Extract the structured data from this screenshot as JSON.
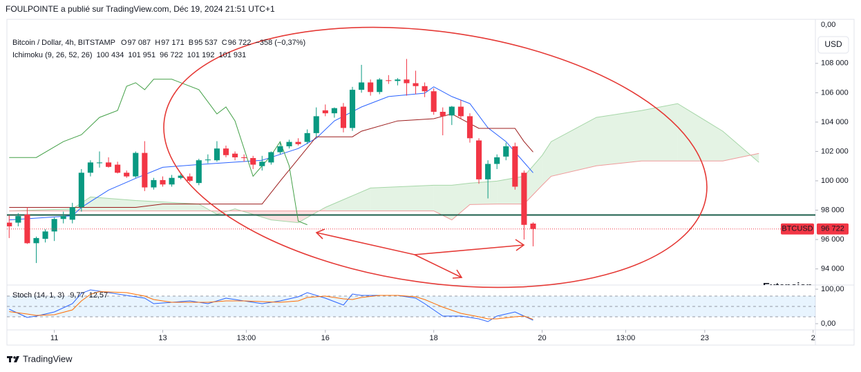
{
  "header": "FOULPOINTE a publié sur TradingView.com, Déc 19, 2024 21:51 UTC+1",
  "footer": "TradingView",
  "chart_data": [
    {
      "type": "candlestick",
      "title": "Bitcoin / Dollar, 4h, BITSTAMP",
      "legend": [
        {
          "key": "O",
          "label": "97 087"
        },
        {
          "key": "H",
          "label": "97 171"
        },
        {
          "key": "B",
          "label": "95 537"
        },
        {
          "key": "C",
          "label": "96 722"
        }
      ],
      "change": "−358 (−0,37%)",
      "up_color": "#089981",
      "down_color": "#f23645",
      "x": [
        -20,
        -16,
        -12,
        -8,
        -4,
        0,
        4,
        8,
        12,
        16,
        20,
        24,
        28,
        32,
        36,
        40,
        44,
        48,
        52,
        56,
        60,
        64,
        68,
        72,
        76,
        80,
        84,
        88,
        92,
        96,
        100,
        104,
        108,
        112,
        116,
        120,
        124,
        128,
        132,
        136,
        140,
        144,
        148,
        152,
        156,
        160,
        164,
        168,
        172,
        176,
        180,
        184,
        188,
        192,
        196,
        200,
        204,
        208,
        212
      ],
      "open": [
        97150,
        97150,
        97700,
        95750,
        96050,
        96550,
        97400,
        97350,
        98200,
        100550,
        101200,
        101250,
        101100,
        100550,
        100300,
        101900,
        99550,
        100050,
        99750,
        100200,
        100300,
        99850,
        101400,
        101400,
        102200,
        101850,
        101600,
        101550,
        101000,
        101250,
        101950,
        102350,
        102650,
        102650,
        103250,
        104800,
        104600,
        105050,
        103600,
        106200,
        106700,
        106050,
        106850,
        106800,
        106900,
        106650,
        106450,
        106100,
        104700,
        104450,
        105050,
        104400,
        102750,
        100100,
        101150,
        101650,
        102350,
        100550,
        97087
      ],
      "high": [
        97650,
        97800,
        98200,
        96200,
        96700,
        97500,
        97900,
        98500,
        100800,
        101400,
        102000,
        101600,
        101300,
        100700,
        102000,
        102700,
        100200,
        100300,
        100400,
        100500,
        100500,
        101500,
        101800,
        102700,
        102400,
        102000,
        101800,
        101700,
        101700,
        102000,
        102600,
        102800,
        102900,
        103500,
        105000,
        105200,
        105000,
        105300,
        106400,
        107900,
        106900,
        107000,
        107200,
        107000,
        108300,
        107500,
        106700,
        106300,
        105000,
        105100,
        105500,
        104600,
        102900,
        101400,
        101800,
        102600,
        102600,
        100700,
        97171
      ],
      "low": [
        96100,
        96900,
        95700,
        94400,
        95800,
        95900,
        97100,
        97100,
        97900,
        100300,
        100900,
        100900,
        100500,
        100200,
        100200,
        99300,
        99400,
        99600,
        99600,
        100100,
        99900,
        99700,
        101200,
        101300,
        101600,
        101400,
        101300,
        100800,
        100700,
        101100,
        101800,
        102200,
        102400,
        102500,
        103000,
        104400,
        104300,
        103300,
        103400,
        106000,
        105800,
        105900,
        106600,
        106500,
        105800,
        105900,
        105700,
        104500,
        103100,
        103800,
        104200,
        102600,
        99800,
        98800,
        100800,
        101400,
        99400,
        96000,
        95537
      ],
      "close": [
        96900,
        97600,
        95750,
        96100,
        96550,
        97400,
        97600,
        98200,
        100550,
        101250,
        101250,
        100950,
        100550,
        100300,
        101900,
        99550,
        100050,
        99750,
        100200,
        100350,
        100000,
        101400,
        101450,
        102200,
        101750,
        101600,
        101550,
        101100,
        101300,
        101950,
        102350,
        102650,
        102500,
        103250,
        104400,
        104600,
        104950,
        103600,
        106200,
        106700,
        106050,
        106900,
        106800,
        106900,
        106650,
        106450,
        106100,
        104700,
        104400,
        105050,
        104400,
        102900,
        100100,
        101150,
        101600,
        102350,
        99600,
        97000,
        96722
      ],
      "indicator": "Ichimoku (9, 26, 52, 26)",
      "lines": [
        {
          "color": "#2962ff",
          "legend_label": "100 434",
          "x": [
            -20,
            8,
            12,
            24,
            36,
            48,
            64,
            92,
            108,
            116,
            124,
            136,
            148,
            164,
            168,
            176,
            184,
            192,
            200,
            204,
            212
          ],
          "values": [
            97340,
            97620,
            98190,
            99370,
            100170,
            100920,
            101110,
            101400,
            102200,
            102900,
            104080,
            105030,
            105740,
            105970,
            106400,
            105740,
            105260,
            103610,
            102670,
            101960,
            100550
          ]
        },
        {
          "color": "#9c1c1c",
          "legend_label": "101 951",
          "x": [
            -20,
            36,
            48,
            92,
            100,
            108,
            116,
            132,
            136,
            152,
            168,
            176,
            188,
            204,
            208,
            212
          ],
          "values": [
            98190,
            98190,
            98420,
            98420,
            99980,
            101490,
            103000,
            103000,
            103380,
            104080,
            104230,
            104560,
            103570,
            103570,
            102670,
            101960
          ]
        },
        {
          "color": "#43a047",
          "legend_label": "96 722",
          "x": [
            -20,
            -8,
            4,
            12,
            20,
            28,
            32,
            36,
            40,
            44,
            52,
            64,
            72,
            76,
            80,
            88,
            96,
            100,
            104,
            108,
            112
          ],
          "values": [
            101590,
            101590,
            102670,
            103140,
            104320,
            104790,
            106440,
            106680,
            106210,
            106920,
            106920,
            106210,
            104560,
            105030,
            104080,
            100310,
            101730,
            102670,
            101020,
            97250,
            97010
          ]
        }
      ],
      "cloud": {
        "x": [
          -20,
          8,
          16,
          36,
          64,
          72,
          80,
          96,
          108,
          120,
          140,
          168,
          176,
          184,
          196,
          208,
          216,
          220,
          240,
          260,
          276,
          296,
          312
        ],
        "span_a": [
          97950,
          98090,
          98900,
          98660,
          98420,
          97720,
          98090,
          97340,
          97150,
          98190,
          99510,
          99700,
          99700,
          99840,
          99980,
          100310,
          101730,
          102670,
          104320,
          104790,
          105260,
          103380,
          101260
        ],
        "span_b": [
          97950,
          97950,
          97950,
          97950,
          97950,
          97950,
          97950,
          97950,
          97950,
          97950,
          97950,
          97950,
          97340,
          98380,
          98420,
          98420,
          99700,
          100310,
          101020,
          101350,
          101350,
          101350,
          101870
        ],
        "span_a_color": "#a5d6a7",
        "span_b_color": "#ef9a9a",
        "span_a_label": "101 192",
        "span_b_label": "101 931"
      },
      "levels": [
        {
          "value": 97670,
          "color": "#1b5e4b"
        }
      ],
      "annotation": "Extension",
      "scale_top_label": "0,00",
      "currency": "USD",
      "symbol": "BTCUSD",
      "price_label": "96 722",
      "xlim": [
        -21,
        337
      ],
      "xticks": [
        {
          "value": 0,
          "label": "11"
        },
        {
          "value": 48,
          "label": "13"
        },
        {
          "value": 85,
          "label": "13:00"
        },
        {
          "value": 120,
          "label": "16"
        },
        {
          "value": 168,
          "label": "18"
        },
        {
          "value": 216,
          "label": "20"
        },
        {
          "value": 253,
          "label": "13:00"
        },
        {
          "value": 288,
          "label": "23"
        },
        {
          "value": 336,
          "label": "2"
        }
      ],
      "ylim": [
        92900,
        111000
      ],
      "yticks": [
        {
          "value": 94000,
          "label": "94 000"
        },
        {
          "value": 96000,
          "label": "96 000"
        },
        {
          "value": 98000,
          "label": "98 000"
        },
        {
          "value": 100000,
          "label": "100 000"
        },
        {
          "value": 102000,
          "label": "102 000"
        },
        {
          "value": 104000,
          "label": "104 000"
        },
        {
          "value": 106000,
          "label": "106 000"
        },
        {
          "value": 108000,
          "label": "108 000"
        }
      ],
      "grid": false
    },
    {
      "type": "line",
      "title": "Stoch (14, 1, 3)",
      "xlim": [
        -21,
        337
      ],
      "ylim": [
        -18,
        110
      ],
      "yticks": [
        {
          "value": 100,
          "label": "100,00"
        },
        {
          "value": 0,
          "label": "0,00"
        }
      ],
      "bands": [
        80,
        50,
        20
      ],
      "series": [
        {
          "color": "#2962ff",
          "legend_label": "9,77",
          "x": [
            -20,
            -12,
            -8,
            0,
            8,
            12,
            16,
            20,
            32,
            40,
            44,
            52,
            60,
            68,
            76,
            84,
            92,
            100,
            108,
            112,
            120,
            128,
            132,
            136,
            144,
            152,
            160,
            164,
            172,
            180,
            188,
            192,
            196,
            204,
            208,
            212
          ],
          "values": [
            42,
            18,
            22,
            34,
            58,
            88,
            98,
            94,
            82,
            74,
            58,
            62,
            66,
            58,
            74,
            66,
            58,
            66,
            78,
            90,
            74,
            54,
            86,
            82,
            82,
            82,
            74,
            58,
            22,
            22,
            14,
            6,
            22,
            34,
            22,
            9.77
          ]
        },
        {
          "color": "#ff6d00",
          "legend_label": "12,57",
          "x": [
            -20,
            -12,
            -8,
            0,
            8,
            12,
            16,
            20,
            32,
            40,
            44,
            52,
            60,
            68,
            76,
            84,
            92,
            100,
            108,
            112,
            120,
            128,
            132,
            136,
            144,
            152,
            160,
            164,
            172,
            180,
            188,
            192,
            196,
            204,
            208,
            212
          ],
          "values": [
            35,
            28,
            24,
            26,
            40,
            66,
            85,
            93,
            90,
            80,
            70,
            62,
            62,
            62,
            66,
            66,
            64,
            62,
            66,
            76,
            80,
            72,
            70,
            76,
            82,
            82,
            78,
            70,
            48,
            30,
            20,
            14,
            14,
            20,
            22,
            12.57
          ]
        }
      ]
    }
  ]
}
